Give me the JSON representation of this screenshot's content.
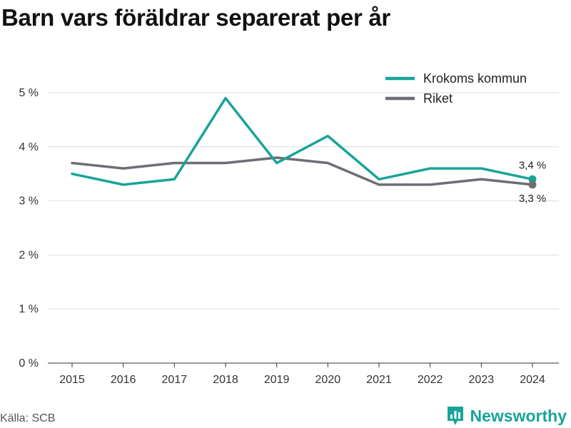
{
  "title": "Barn vars föräldrar separerat per år",
  "source": "Källa: SCB",
  "brand": "Newsworthy",
  "colors": {
    "accent": "#1aa39a",
    "series2": "#6e6e76",
    "grid": "#dddddd"
  },
  "chart_data": {
    "type": "line",
    "title": "Barn vars föräldrar separerat per år",
    "x": [
      "2015",
      "2016",
      "2017",
      "2018",
      "2019",
      "2020",
      "2021",
      "2022",
      "2023",
      "2024"
    ],
    "ylim": [
      0,
      5
    ],
    "yticks": [
      "0 %",
      "1 %",
      "2 %",
      "3 %",
      "4 %",
      "5 %"
    ],
    "grid": true,
    "legend_position": "top-right",
    "series": [
      {
        "name": "Krokoms kommun",
        "color": "#1aa39a",
        "values": [
          3.5,
          3.3,
          3.4,
          4.9,
          3.7,
          4.2,
          3.4,
          3.6,
          3.6,
          3.4
        ],
        "end_label": "3,4 %"
      },
      {
        "name": "Riket",
        "color": "#6e6e76",
        "values": [
          3.7,
          3.6,
          3.7,
          3.7,
          3.8,
          3.7,
          3.3,
          3.3,
          3.4,
          3.3
        ],
        "end_label": "3,3 %"
      }
    ]
  }
}
